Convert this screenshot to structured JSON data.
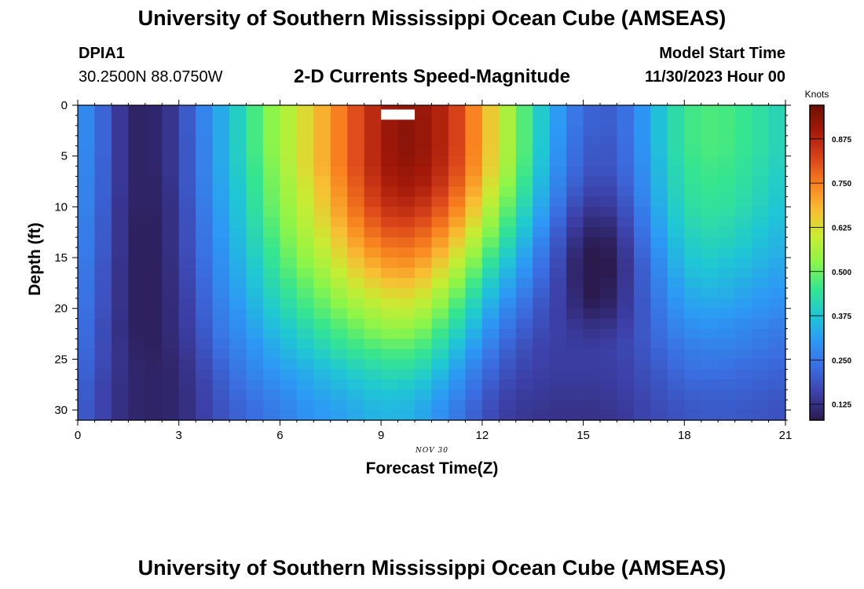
{
  "header": {
    "title_top": "University of Southern Mississippi Ocean Cube (AMSEAS)",
    "title_bottom": "University of Southern Mississippi Ocean Cube (AMSEAS)",
    "station_id": "DPIA1",
    "station_coords": "30.2500N  88.0750W",
    "plot_title": "2-D Currents Speed-Magnitude",
    "model_start_label": "Model Start Time",
    "model_start_value": "11/30/2023 Hour 00"
  },
  "chart_data": {
    "type": "heatmap",
    "title": "2-D Currents Speed-Magnitude",
    "xlabel": "Forecast Time(Z)",
    "ylabel": "Depth (ft)",
    "x_date_label": "NOV 30",
    "xlim": [
      0,
      21
    ],
    "ylim": [
      31,
      0
    ],
    "x_ticks": [
      0,
      3,
      6,
      9,
      12,
      15,
      18,
      21
    ],
    "y_ticks": [
      0,
      5,
      10,
      15,
      20,
      25,
      30
    ],
    "colorbar": {
      "label": "Knots",
      "range": [
        0.08,
        0.97
      ],
      "ticks": [
        "0.125",
        "0.250",
        "0.375",
        "0.500",
        "0.625",
        "0.750",
        "0.875"
      ],
      "colors": [
        "#2a1a4d",
        "#3c3fa5",
        "#3b6de0",
        "#2d98f5",
        "#1fc7d4",
        "#36e58f",
        "#8bf54a",
        "#c8ec33",
        "#f8be33",
        "#f8811f",
        "#d9431a",
        "#a51a0a",
        "#6d0f05"
      ]
    },
    "profile_times": [
      0,
      0.5,
      1,
      1.5,
      2,
      2.5,
      3,
      3.5,
      4,
      4.5,
      5,
      5.5,
      6,
      6.5,
      7,
      7.5,
      8,
      8.5,
      9,
      9.5,
      10,
      10.5,
      11,
      11.5,
      12,
      12.5,
      13,
      13.5,
      14,
      14.5,
      15,
      15.5,
      16,
      16.5,
      17,
      17.5,
      18,
      18.5,
      19,
      19.5,
      20,
      20.5,
      21
    ],
    "profile_depths": [
      0,
      2,
      4,
      6,
      8,
      10,
      12,
      14,
      16,
      18,
      20,
      22,
      24,
      26,
      28,
      30
    ],
    "missing_cells": [
      {
        "time": 9.5,
        "depth": 1
      }
    ],
    "values": [
      [
        0.3,
        0.3,
        0.3,
        0.3,
        0.29,
        0.29,
        0.28,
        0.28,
        0.27,
        0.26,
        0.26,
        0.25,
        0.24,
        0.23,
        0.22,
        0.21
      ],
      [
        0.25,
        0.25,
        0.25,
        0.24,
        0.24,
        0.24,
        0.23,
        0.23,
        0.22,
        0.22,
        0.21,
        0.2,
        0.2,
        0.19,
        0.18,
        0.18
      ],
      [
        0.18,
        0.18,
        0.18,
        0.18,
        0.18,
        0.17,
        0.17,
        0.17,
        0.16,
        0.16,
        0.16,
        0.15,
        0.15,
        0.15,
        0.14,
        0.14
      ],
      [
        0.1,
        0.1,
        0.1,
        0.1,
        0.1,
        0.1,
        0.1,
        0.1,
        0.1,
        0.1,
        0.1,
        0.1,
        0.11,
        0.11,
        0.11,
        0.11
      ],
      [
        0.1,
        0.1,
        0.1,
        0.1,
        0.1,
        0.1,
        0.09,
        0.09,
        0.09,
        0.09,
        0.09,
        0.09,
        0.09,
        0.1,
        0.1,
        0.1
      ],
      [
        0.11,
        0.11,
        0.11,
        0.11,
        0.1,
        0.1,
        0.1,
        0.1,
        0.1,
        0.1,
        0.1,
        0.1,
        0.1,
        0.1,
        0.1,
        0.1
      ],
      [
        0.16,
        0.16,
        0.16,
        0.16,
        0.16,
        0.15,
        0.15,
        0.15,
        0.14,
        0.14,
        0.13,
        0.13,
        0.12,
        0.11,
        0.11,
        0.11
      ],
      [
        0.24,
        0.24,
        0.23,
        0.23,
        0.23,
        0.22,
        0.21,
        0.21,
        0.2,
        0.19,
        0.18,
        0.17,
        0.16,
        0.15,
        0.14,
        0.14
      ],
      [
        0.3,
        0.3,
        0.3,
        0.3,
        0.29,
        0.29,
        0.28,
        0.27,
        0.26,
        0.25,
        0.24,
        0.23,
        0.21,
        0.19,
        0.18,
        0.17
      ],
      [
        0.36,
        0.36,
        0.36,
        0.36,
        0.35,
        0.34,
        0.33,
        0.32,
        0.31,
        0.3,
        0.28,
        0.27,
        0.25,
        0.23,
        0.21,
        0.2
      ],
      [
        0.43,
        0.43,
        0.43,
        0.42,
        0.41,
        0.4,
        0.39,
        0.38,
        0.36,
        0.34,
        0.32,
        0.3,
        0.28,
        0.26,
        0.24,
        0.22
      ],
      [
        0.5,
        0.5,
        0.5,
        0.49,
        0.48,
        0.47,
        0.45,
        0.43,
        0.41,
        0.39,
        0.37,
        0.34,
        0.31,
        0.29,
        0.26,
        0.24
      ],
      [
        0.55,
        0.55,
        0.55,
        0.54,
        0.53,
        0.52,
        0.5,
        0.48,
        0.46,
        0.43,
        0.4,
        0.37,
        0.34,
        0.31,
        0.28,
        0.26
      ],
      [
        0.6,
        0.6,
        0.6,
        0.6,
        0.58,
        0.57,
        0.55,
        0.53,
        0.5,
        0.47,
        0.44,
        0.4,
        0.37,
        0.33,
        0.3,
        0.28
      ],
      [
        0.66,
        0.66,
        0.66,
        0.66,
        0.64,
        0.62,
        0.6,
        0.57,
        0.54,
        0.5,
        0.47,
        0.43,
        0.39,
        0.35,
        0.32,
        0.3
      ],
      [
        0.72,
        0.72,
        0.72,
        0.72,
        0.7,
        0.68,
        0.65,
        0.62,
        0.58,
        0.54,
        0.5,
        0.46,
        0.42,
        0.37,
        0.34,
        0.31
      ],
      [
        0.78,
        0.78,
        0.78,
        0.78,
        0.76,
        0.74,
        0.71,
        0.67,
        0.63,
        0.58,
        0.53,
        0.48,
        0.44,
        0.39,
        0.35,
        0.32
      ],
      [
        0.84,
        0.84,
        0.84,
        0.84,
        0.82,
        0.8,
        0.76,
        0.72,
        0.67,
        0.62,
        0.56,
        0.51,
        0.46,
        0.41,
        0.37,
        0.34
      ],
      [
        0.89,
        0.89,
        0.89,
        0.89,
        0.87,
        0.84,
        0.8,
        0.75,
        0.7,
        0.64,
        0.58,
        0.53,
        0.47,
        0.42,
        0.38,
        0.35
      ],
      [
        0.92,
        0.93,
        0.93,
        0.92,
        0.9,
        0.87,
        0.82,
        0.77,
        0.72,
        0.66,
        0.6,
        0.54,
        0.48,
        0.43,
        0.38,
        0.35
      ],
      [
        0.92,
        0.93,
        0.93,
        0.92,
        0.9,
        0.86,
        0.81,
        0.76,
        0.71,
        0.65,
        0.59,
        0.53,
        0.47,
        0.42,
        0.37,
        0.34
      ],
      [
        0.9,
        0.9,
        0.9,
        0.89,
        0.87,
        0.83,
        0.78,
        0.73,
        0.67,
        0.61,
        0.55,
        0.49,
        0.44,
        0.39,
        0.34,
        0.31
      ],
      [
        0.86,
        0.86,
        0.86,
        0.85,
        0.82,
        0.78,
        0.73,
        0.67,
        0.61,
        0.55,
        0.49,
        0.44,
        0.39,
        0.34,
        0.3,
        0.27
      ],
      [
        0.79,
        0.79,
        0.79,
        0.78,
        0.75,
        0.71,
        0.66,
        0.6,
        0.54,
        0.48,
        0.43,
        0.38,
        0.33,
        0.29,
        0.26,
        0.23
      ],
      [
        0.7,
        0.7,
        0.7,
        0.69,
        0.66,
        0.62,
        0.57,
        0.52,
        0.46,
        0.41,
        0.36,
        0.32,
        0.28,
        0.24,
        0.21,
        0.19
      ],
      [
        0.61,
        0.61,
        0.61,
        0.6,
        0.57,
        0.53,
        0.49,
        0.44,
        0.39,
        0.34,
        0.3,
        0.26,
        0.23,
        0.2,
        0.18,
        0.16
      ],
      [
        0.52,
        0.52,
        0.52,
        0.51,
        0.48,
        0.45,
        0.41,
        0.37,
        0.33,
        0.29,
        0.25,
        0.22,
        0.19,
        0.17,
        0.15,
        0.14
      ],
      [
        0.43,
        0.43,
        0.43,
        0.42,
        0.4,
        0.37,
        0.34,
        0.3,
        0.27,
        0.24,
        0.21,
        0.19,
        0.17,
        0.16,
        0.15,
        0.14
      ],
      [
        0.34,
        0.34,
        0.33,
        0.32,
        0.3,
        0.28,
        0.25,
        0.22,
        0.2,
        0.18,
        0.17,
        0.16,
        0.15,
        0.15,
        0.14,
        0.13
      ],
      [
        0.27,
        0.27,
        0.26,
        0.25,
        0.23,
        0.2,
        0.17,
        0.15,
        0.14,
        0.14,
        0.14,
        0.15,
        0.15,
        0.15,
        0.14,
        0.13
      ],
      [
        0.22,
        0.22,
        0.21,
        0.2,
        0.18,
        0.15,
        0.12,
        0.09,
        0.07,
        0.08,
        0.1,
        0.13,
        0.15,
        0.15,
        0.14,
        0.13
      ],
      [
        0.2,
        0.2,
        0.19,
        0.18,
        0.16,
        0.13,
        0.1,
        0.07,
        0.06,
        0.07,
        0.09,
        0.13,
        0.15,
        0.15,
        0.14,
        0.13
      ],
      [
        0.21,
        0.21,
        0.2,
        0.2,
        0.18,
        0.16,
        0.13,
        0.11,
        0.1,
        0.11,
        0.12,
        0.14,
        0.16,
        0.15,
        0.15,
        0.14
      ],
      [
        0.26,
        0.26,
        0.26,
        0.25,
        0.24,
        0.22,
        0.2,
        0.18,
        0.17,
        0.17,
        0.17,
        0.18,
        0.18,
        0.17,
        0.16,
        0.15
      ],
      [
        0.33,
        0.33,
        0.33,
        0.32,
        0.31,
        0.3,
        0.28,
        0.26,
        0.24,
        0.23,
        0.22,
        0.21,
        0.2,
        0.19,
        0.18,
        0.17
      ],
      [
        0.4,
        0.4,
        0.4,
        0.39,
        0.38,
        0.37,
        0.35,
        0.33,
        0.31,
        0.29,
        0.27,
        0.25,
        0.23,
        0.21,
        0.19,
        0.18
      ],
      [
        0.45,
        0.45,
        0.45,
        0.44,
        0.43,
        0.42,
        0.4,
        0.38,
        0.36,
        0.33,
        0.31,
        0.28,
        0.25,
        0.23,
        0.21,
        0.19
      ],
      [
        0.47,
        0.47,
        0.47,
        0.46,
        0.45,
        0.44,
        0.42,
        0.4,
        0.38,
        0.35,
        0.32,
        0.29,
        0.26,
        0.24,
        0.21,
        0.2
      ],
      [
        0.47,
        0.47,
        0.47,
        0.46,
        0.45,
        0.44,
        0.42,
        0.4,
        0.37,
        0.35,
        0.32,
        0.29,
        0.26,
        0.24,
        0.21,
        0.2
      ],
      [
        0.46,
        0.46,
        0.46,
        0.45,
        0.44,
        0.43,
        0.41,
        0.39,
        0.36,
        0.34,
        0.31,
        0.28,
        0.26,
        0.23,
        0.21,
        0.2
      ],
      [
        0.44,
        0.44,
        0.44,
        0.43,
        0.42,
        0.41,
        0.39,
        0.37,
        0.35,
        0.32,
        0.3,
        0.27,
        0.25,
        0.22,
        0.21,
        0.19
      ],
      [
        0.42,
        0.42,
        0.42,
        0.41,
        0.4,
        0.39,
        0.37,
        0.35,
        0.33,
        0.31,
        0.29,
        0.26,
        0.24,
        0.22,
        0.2,
        0.19
      ],
      [
        0.4,
        0.4,
        0.4,
        0.39,
        0.38,
        0.37,
        0.35,
        0.34,
        0.32,
        0.3,
        0.28,
        0.25,
        0.23,
        0.21,
        0.2,
        0.18
      ]
    ]
  }
}
